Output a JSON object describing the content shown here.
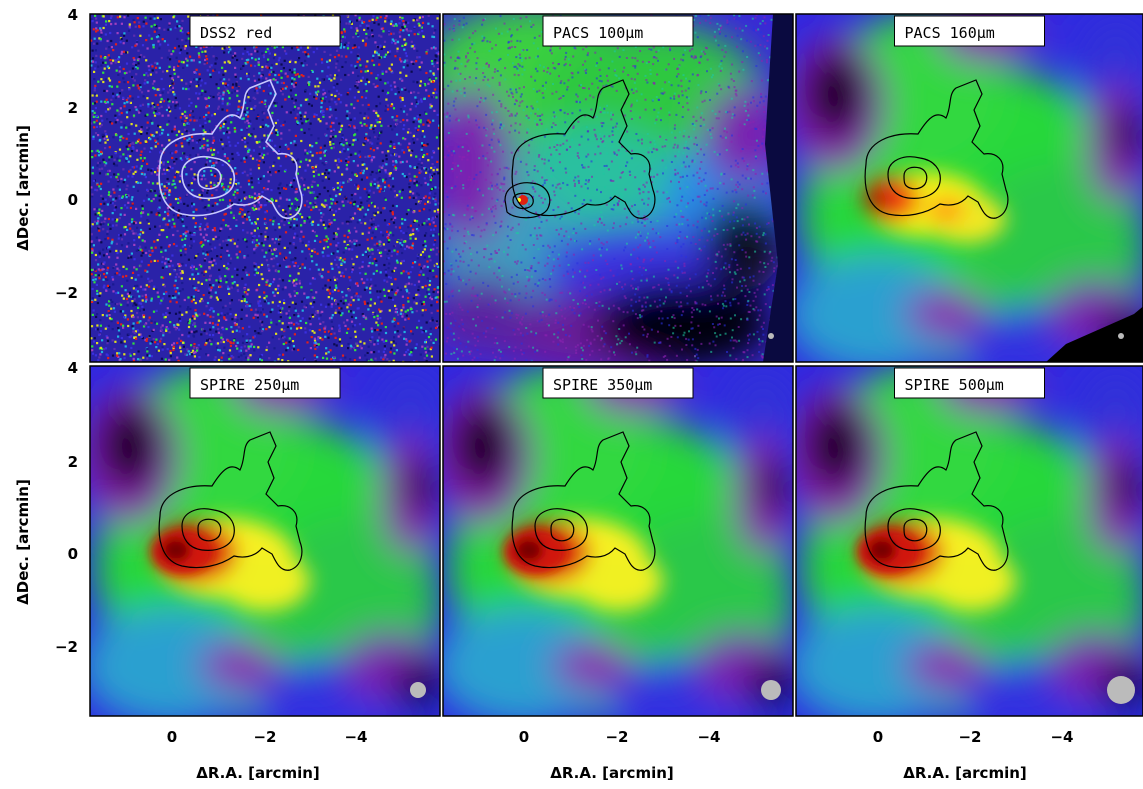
{
  "figure": {
    "xlabel": "ΔR.A. [arcmin]",
    "ylabel": "ΔDec. [arcmin]",
    "xticks": [
      "0",
      "−2",
      "−4"
    ],
    "yticks": [
      "4",
      "2",
      "0",
      "−2"
    ],
    "xlim": [
      1.7,
      -5.9
    ],
    "ylim": [
      -3.5,
      4
    ]
  },
  "panels": [
    {
      "label": "DSS2 red",
      "kind": "optical",
      "beam": false
    },
    {
      "label": "PACS 100μm",
      "kind": "pacs100",
      "beam": "small"
    },
    {
      "label": "PACS 160μm",
      "kind": "pacs160",
      "beam": "small"
    },
    {
      "label": "SPIRE 250μm",
      "kind": "spire",
      "beam": "medium"
    },
    {
      "label": "SPIRE 350μm",
      "kind": "spire",
      "beam": "large"
    },
    {
      "label": "SPIRE 500μm",
      "kind": "spire",
      "beam": "xlarge"
    }
  ],
  "colors": {
    "background_blue": "#2a25d8",
    "green": "#2ee82a",
    "yellow": "#ffff1e",
    "red": "#e61a0a",
    "dark_red": "#8a0000",
    "magenta": "#8a22b0",
    "black": "#000000",
    "contour_dark": "#000000",
    "contour_light": "#c8c8ff",
    "beam": "#bbbbbb"
  }
}
